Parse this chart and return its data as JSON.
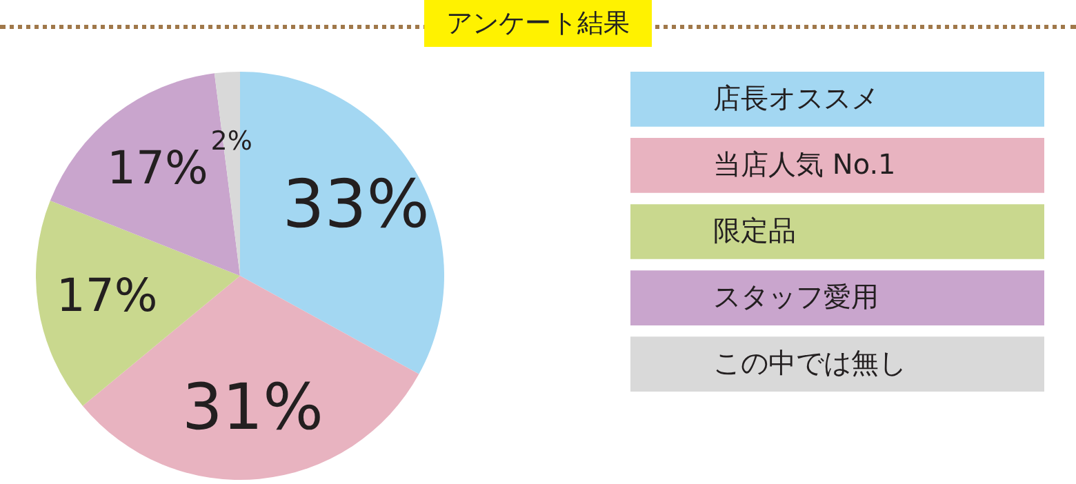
{
  "chart_data": {
    "type": "pie",
    "title": "アンケート結果",
    "categories": [
      "店長オススメ",
      "当店人気 No.1",
      "限定品",
      "スタッフ愛用",
      "この中では無し"
    ],
    "values": [
      33,
      31,
      17,
      17,
      2
    ],
    "value_labels": [
      "33%",
      "31%",
      "17%",
      "17%",
      "2%"
    ],
    "colors": [
      "#a3d7f2",
      "#e8b3c0",
      "#c9d88e",
      "#c9a5cd",
      "#d9d9d9"
    ],
    "legend": "right"
  }
}
